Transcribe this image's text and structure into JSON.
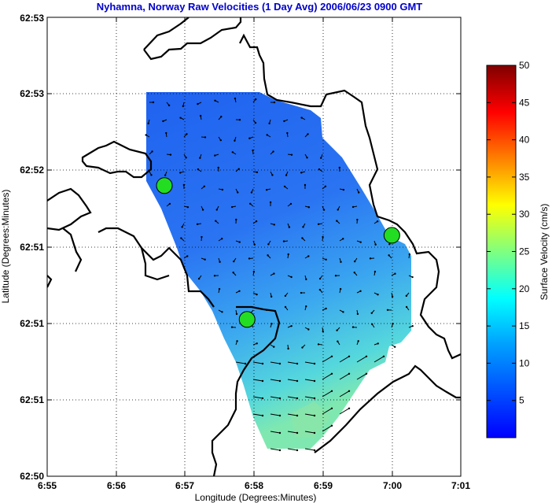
{
  "chart_data": {
    "type": "map",
    "title": "Nyhamna, Norway Raw Velocities (1 Day Avg) 2006/06/23 0900 GMT",
    "xlabel": "Longitude (Degrees:Minutes)",
    "ylabel": "Latitude (Degrees:Minutes)",
    "xlim": [
      6.55,
      7.01
    ],
    "ylim": [
      62.5,
      62.53
    ],
    "x_ticks": [
      "6:55",
      "6:56",
      "6:57",
      "6:58",
      "6:59",
      "7:00",
      "7:01"
    ],
    "y_ticks": [
      "62:50",
      "62:51",
      "62:51",
      "62:51",
      "62:52",
      "62:53",
      "62:53"
    ],
    "grid": true,
    "colorbar": {
      "label": "Surface Velocity (cm/s)",
      "ticks": [
        "5",
        "10",
        "15",
        "20",
        "25",
        "30",
        "35",
        "40",
        "45",
        "50"
      ],
      "range": [
        0,
        50
      ],
      "colormap": "jet"
    },
    "stations": [
      {
        "x_tick": 1.7,
        "y_tick": 3.8
      },
      {
        "x_tick": 2.9,
        "y_tick": 2.05
      },
      {
        "x_tick": 5.0,
        "y_tick": 3.15
      }
    ],
    "colors": {
      "title": "#0000cc",
      "station_fill": "#22dd22",
      "coast": "#000000",
      "field_low": "#2a6ef0",
      "field_high": "#70e8c0"
    }
  }
}
